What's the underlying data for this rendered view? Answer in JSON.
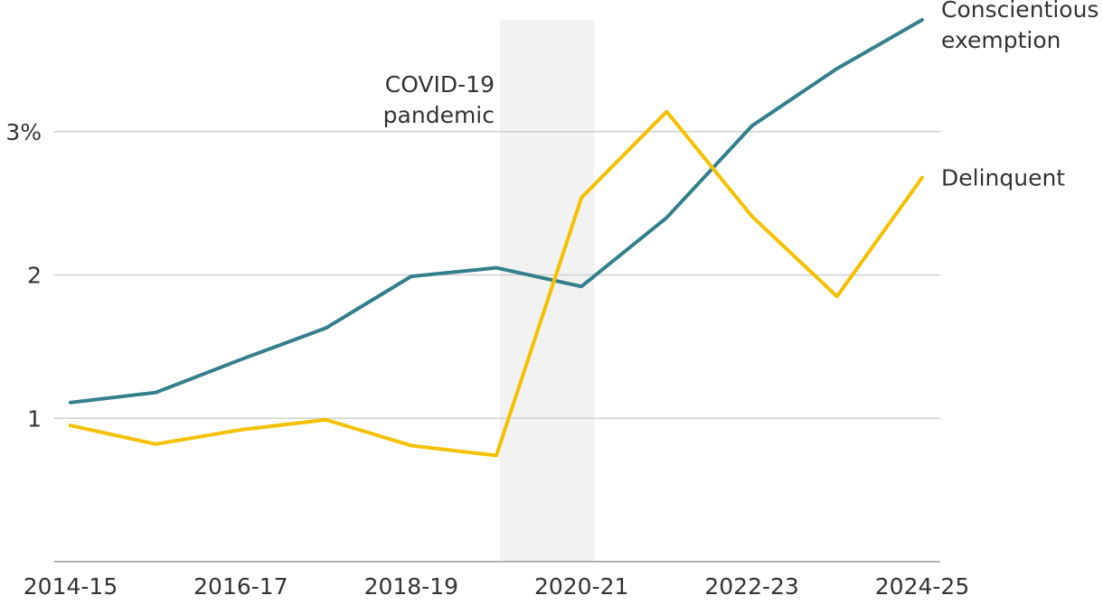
{
  "chart_data": {
    "type": "line",
    "categories": [
      "2014-15",
      "2015-16",
      "2016-17",
      "2017-18",
      "2018-19",
      "2019-20",
      "2020-21",
      "2021-22",
      "2022-23",
      "2023-24",
      "2024-25"
    ],
    "x_tick_labels": [
      "2014-15",
      "2016-17",
      "2018-19",
      "2020-21",
      "2022-23",
      "2024-25"
    ],
    "ylim": [
      0,
      3.78
    ],
    "y_ticks": [
      {
        "value": 1,
        "label": "1"
      },
      {
        "value": 2,
        "label": "2"
      },
      {
        "value": 3,
        "label": "3%"
      }
    ],
    "grid": true,
    "series": [
      {
        "name": "Conscientious exemption",
        "label_lines": [
          "Conscientious",
          "exemption"
        ],
        "color": "#337f8c",
        "values": [
          1.11,
          1.18,
          1.41,
          1.63,
          1.99,
          2.05,
          1.92,
          2.4,
          3.04,
          3.44,
          3.78
        ]
      },
      {
        "name": "Delinquent",
        "label_lines": [
          "Delinquent"
        ],
        "color": "#f5c000",
        "values": [
          0.95,
          0.82,
          0.92,
          0.99,
          0.81,
          0.74,
          2.54,
          3.14,
          2.41,
          1.85,
          2.68
        ]
      }
    ],
    "annotation": {
      "label_lines": [
        "COVID-19",
        "pandemic"
      ],
      "span": [
        "2019-20",
        "2020-21"
      ],
      "color": "#f2f2f2"
    }
  }
}
